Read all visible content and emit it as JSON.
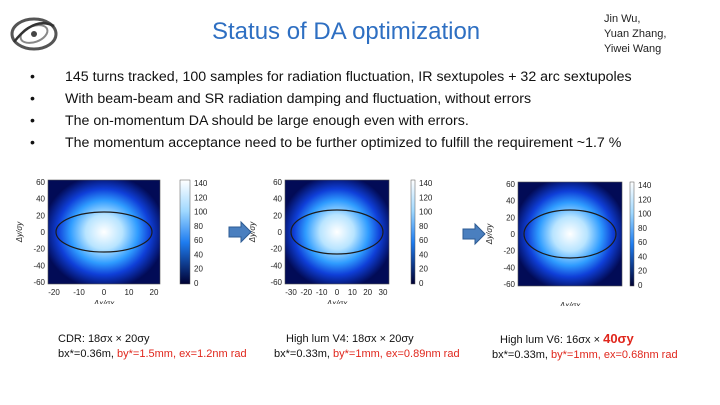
{
  "header": {
    "logo_icon": "institute-logo-icon",
    "title": "Status of DA optimization",
    "authors": [
      "Jin Wu,",
      "Yuan Zhang,",
      "Yiwei Wang"
    ]
  },
  "bullets": [
    "145 turns tracked, 100 samples for radiation fluctuation, IR sextupoles + 32 arc sextupoles",
    "With beam-beam and SR radiation damping and fluctuation, without errors",
    "The on-momentum DA should be large enough even with errors.",
    "The momentum acceptance need to be further optimized to fulfill the requirement ~1.7 %"
  ],
  "arrow_icon": "right-arrow-icon",
  "plots": [
    {
      "ylabel": "Δy/σy",
      "xlabel": "Δx/σx",
      "yticks": [
        "60",
        "40",
        "20",
        "0",
        "-20",
        "-40",
        "-60"
      ],
      "xticks": [
        "-20",
        "-10",
        "0",
        "10",
        "20"
      ],
      "cticks": [
        "140",
        "120",
        "100",
        "80",
        "60",
        "40",
        "20",
        "0"
      ],
      "caption_line1_pre": "CDR: 18σx × 20σy",
      "caption_line1_accent": "",
      "caption_line2_pre": "bx*=0.36m,",
      "caption_line2_red": "by*=1.5mm, ex=1.2nm rad"
    },
    {
      "ylabel": "Δy/σy",
      "xlabel": "Δx/σx",
      "yticks": [
        "60",
        "40",
        "20",
        "0",
        "-20",
        "-40",
        "-60"
      ],
      "xticks": [
        "-30",
        "-20",
        "-10",
        "0",
        "10",
        "20",
        "30"
      ],
      "cticks": [
        "140",
        "120",
        "100",
        "80",
        "60",
        "40",
        "20",
        "0"
      ],
      "caption_line1_pre": "High lum V4: 18σx × 20σy",
      "caption_line1_accent": "",
      "caption_line2_pre": "bx*=0.33m,",
      "caption_line2_red": "by*=1mm, ex=0.89nm rad"
    },
    {
      "ylabel": "Δy/σy",
      "xlabel": "Δx/σx",
      "yticks": [
        "60",
        "40",
        "20",
        "0",
        "-20",
        "-40",
        "-60"
      ],
      "xticks": [],
      "cticks": [
        "140",
        "120",
        "100",
        "80",
        "60",
        "40",
        "20",
        "0"
      ],
      "caption_line1_pre": "High lum V6: 16σx ×",
      "caption_line1_accent": "40σy",
      "caption_line2_pre": "bx*=0.33m,",
      "caption_line2_red": "by*=1mm, ex=0.68nm rad"
    }
  ],
  "colors": {
    "title": "#2e6fc2",
    "red": "#e0261c",
    "arrow": "#4a7fbf"
  }
}
